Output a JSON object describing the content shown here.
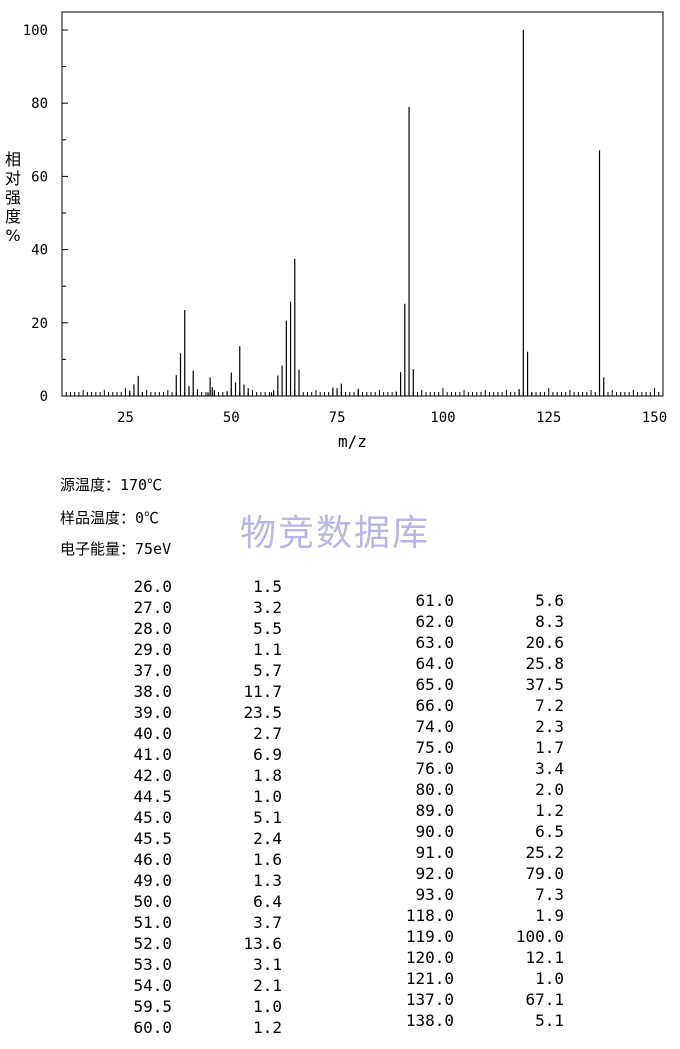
{
  "chart_data": {
    "type": "bar",
    "ylabel_chars": [
      "相",
      "对",
      "强",
      "度",
      "%"
    ],
    "xlabel": "m/z",
    "xlim": [
      10,
      152
    ],
    "ylim": [
      0,
      100
    ],
    "x_ticks": [
      "25",
      "50",
      "75",
      "100",
      "125",
      "150"
    ],
    "y_ticks": [
      "0",
      "20",
      "40",
      "60",
      "80",
      "100"
    ],
    "peaks": [
      {
        "mz": 26.0,
        "abundance": 1.5
      },
      {
        "mz": 27.0,
        "abundance": 3.2
      },
      {
        "mz": 28.0,
        "abundance": 5.5
      },
      {
        "mz": 29.0,
        "abundance": 1.1
      },
      {
        "mz": 37.0,
        "abundance": 5.7
      },
      {
        "mz": 38.0,
        "abundance": 11.7
      },
      {
        "mz": 39.0,
        "abundance": 23.5
      },
      {
        "mz": 40.0,
        "abundance": 2.7
      },
      {
        "mz": 41.0,
        "abundance": 6.9
      },
      {
        "mz": 42.0,
        "abundance": 1.8
      },
      {
        "mz": 44.5,
        "abundance": 1.0
      },
      {
        "mz": 45.0,
        "abundance": 5.1
      },
      {
        "mz": 45.5,
        "abundance": 2.4
      },
      {
        "mz": 46.0,
        "abundance": 1.6
      },
      {
        "mz": 49.0,
        "abundance": 1.3
      },
      {
        "mz": 50.0,
        "abundance": 6.4
      },
      {
        "mz": 51.0,
        "abundance": 3.7
      },
      {
        "mz": 52.0,
        "abundance": 13.6
      },
      {
        "mz": 53.0,
        "abundance": 3.1
      },
      {
        "mz": 54.0,
        "abundance": 2.1
      },
      {
        "mz": 59.5,
        "abundance": 1.0
      },
      {
        "mz": 60.0,
        "abundance": 1.2
      },
      {
        "mz": 61.0,
        "abundance": 5.6
      },
      {
        "mz": 62.0,
        "abundance": 8.3
      },
      {
        "mz": 63.0,
        "abundance": 20.6
      },
      {
        "mz": 64.0,
        "abundance": 25.8
      },
      {
        "mz": 65.0,
        "abundance": 37.5
      },
      {
        "mz": 66.0,
        "abundance": 7.2
      },
      {
        "mz": 74.0,
        "abundance": 2.3
      },
      {
        "mz": 75.0,
        "abundance": 1.7
      },
      {
        "mz": 76.0,
        "abundance": 3.4
      },
      {
        "mz": 80.0,
        "abundance": 2.0
      },
      {
        "mz": 89.0,
        "abundance": 1.2
      },
      {
        "mz": 90.0,
        "abundance": 6.5
      },
      {
        "mz": 91.0,
        "abundance": 25.2
      },
      {
        "mz": 92.0,
        "abundance": 79.0
      },
      {
        "mz": 93.0,
        "abundance": 7.3
      },
      {
        "mz": 118.0,
        "abundance": 1.9
      },
      {
        "mz": 119.0,
        "abundance": 100.0
      },
      {
        "mz": 120.0,
        "abundance": 12.1
      },
      {
        "mz": 121.0,
        "abundance": 1.0
      },
      {
        "mz": 137.0,
        "abundance": 67.1
      },
      {
        "mz": 138.0,
        "abundance": 5.1
      }
    ]
  },
  "info": {
    "source_temp": "源温度：170℃",
    "sample_temp": "样品温度：0℃",
    "electron_energy": "电子能量：75eV"
  },
  "watermark": "物竞数据库",
  "table_left": [
    [
      "26.0",
      "1.5"
    ],
    [
      "27.0",
      "3.2"
    ],
    [
      "28.0",
      "5.5"
    ],
    [
      "29.0",
      "1.1"
    ],
    [
      "37.0",
      "5.7"
    ],
    [
      "38.0",
      "11.7"
    ],
    [
      "39.0",
      "23.5"
    ],
    [
      "40.0",
      "2.7"
    ],
    [
      "41.0",
      "6.9"
    ],
    [
      "42.0",
      "1.8"
    ],
    [
      "44.5",
      "1.0"
    ],
    [
      "45.0",
      "5.1"
    ],
    [
      "45.5",
      "2.4"
    ],
    [
      "46.0",
      "1.6"
    ],
    [
      "49.0",
      "1.3"
    ],
    [
      "50.0",
      "6.4"
    ],
    [
      "51.0",
      "3.7"
    ],
    [
      "52.0",
      "13.6"
    ],
    [
      "53.0",
      "3.1"
    ],
    [
      "54.0",
      "2.1"
    ],
    [
      "59.5",
      "1.0"
    ],
    [
      "60.0",
      "1.2"
    ]
  ],
  "table_right": [
    [
      "61.0",
      "5.6"
    ],
    [
      "62.0",
      "8.3"
    ],
    [
      "63.0",
      "20.6"
    ],
    [
      "64.0",
      "25.8"
    ],
    [
      "65.0",
      "37.5"
    ],
    [
      "66.0",
      "7.2"
    ],
    [
      "74.0",
      "2.3"
    ],
    [
      "75.0",
      "1.7"
    ],
    [
      "76.0",
      "3.4"
    ],
    [
      "80.0",
      "2.0"
    ],
    [
      "89.0",
      "1.2"
    ],
    [
      "90.0",
      "6.5"
    ],
    [
      "91.0",
      "25.2"
    ],
    [
      "92.0",
      "79.0"
    ],
    [
      "93.0",
      "7.3"
    ],
    [
      "118.0",
      "1.9"
    ],
    [
      "119.0",
      "100.0"
    ],
    [
      "120.0",
      "12.1"
    ],
    [
      "121.0",
      "1.0"
    ],
    [
      "137.0",
      "67.1"
    ],
    [
      "138.0",
      "5.1"
    ]
  ]
}
